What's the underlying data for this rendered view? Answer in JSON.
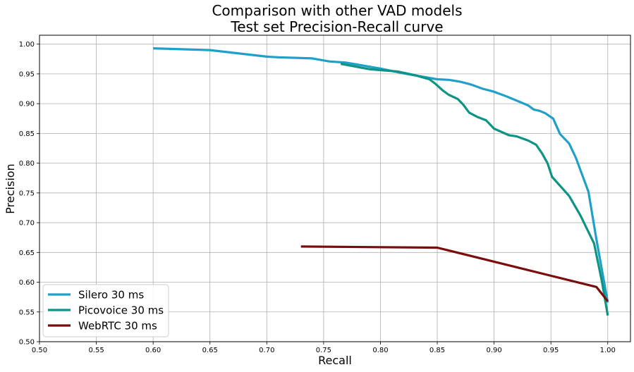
{
  "chart_data": {
    "type": "line",
    "title": "Comparison with other VAD models",
    "subtitle": "Test set Precision-Recall curve",
    "xlabel": "Recall",
    "ylabel": "Precision",
    "xlim": [
      0.5,
      1.02
    ],
    "ylim": [
      0.5,
      1.015
    ],
    "xticks": [
      "0.50",
      "0.55",
      "0.60",
      "0.65",
      "0.70",
      "0.75",
      "0.80",
      "0.85",
      "0.90",
      "0.95",
      "1.00"
    ],
    "yticks": [
      "0.50",
      "0.55",
      "0.60",
      "0.65",
      "0.70",
      "0.75",
      "0.80",
      "0.85",
      "0.90",
      "0.95",
      "1.00"
    ],
    "grid": true,
    "legend_position": "lower-left",
    "series": [
      {
        "name": "Silero 30 ms",
        "color": "#20a0c8",
        "x": [
          0.6,
          0.65,
          0.7,
          0.71,
          0.74,
          0.755,
          0.77,
          0.8,
          0.82,
          0.85,
          0.86,
          0.87,
          0.88,
          0.89,
          0.9,
          0.91,
          0.92,
          0.93,
          0.935,
          0.94,
          0.945,
          0.952,
          0.958,
          0.966,
          0.972,
          0.983,
          0.99,
          1.0
        ],
        "y": [
          0.993,
          0.99,
          0.979,
          0.978,
          0.976,
          0.971,
          0.969,
          0.959,
          0.951,
          0.941,
          0.94,
          0.937,
          0.932,
          0.925,
          0.92,
          0.913,
          0.905,
          0.897,
          0.89,
          0.888,
          0.884,
          0.875,
          0.849,
          0.833,
          0.809,
          0.752,
          0.672,
          0.566
        ]
      },
      {
        "name": "Picovoice 30 ms",
        "color": "#0e9484",
        "x": [
          0.765,
          0.79,
          0.815,
          0.83,
          0.843,
          0.848,
          0.855,
          0.86,
          0.868,
          0.873,
          0.878,
          0.885,
          0.893,
          0.9,
          0.913,
          0.92,
          0.93,
          0.937,
          0.942,
          0.947,
          0.951,
          0.966,
          0.976,
          0.988,
          0.995,
          1.0
        ],
        "y": [
          0.967,
          0.958,
          0.954,
          0.948,
          0.941,
          0.934,
          0.922,
          0.915,
          0.908,
          0.898,
          0.885,
          0.878,
          0.872,
          0.858,
          0.847,
          0.845,
          0.838,
          0.831,
          0.817,
          0.8,
          0.777,
          0.745,
          0.712,
          0.665,
          0.6,
          0.544
        ]
      },
      {
        "name": "WebRTC 30 ms",
        "color": "#7a0c0c",
        "x": [
          0.73,
          0.85,
          0.99,
          1.0
        ],
        "y": [
          0.66,
          0.658,
          0.592,
          0.568
        ]
      }
    ]
  }
}
